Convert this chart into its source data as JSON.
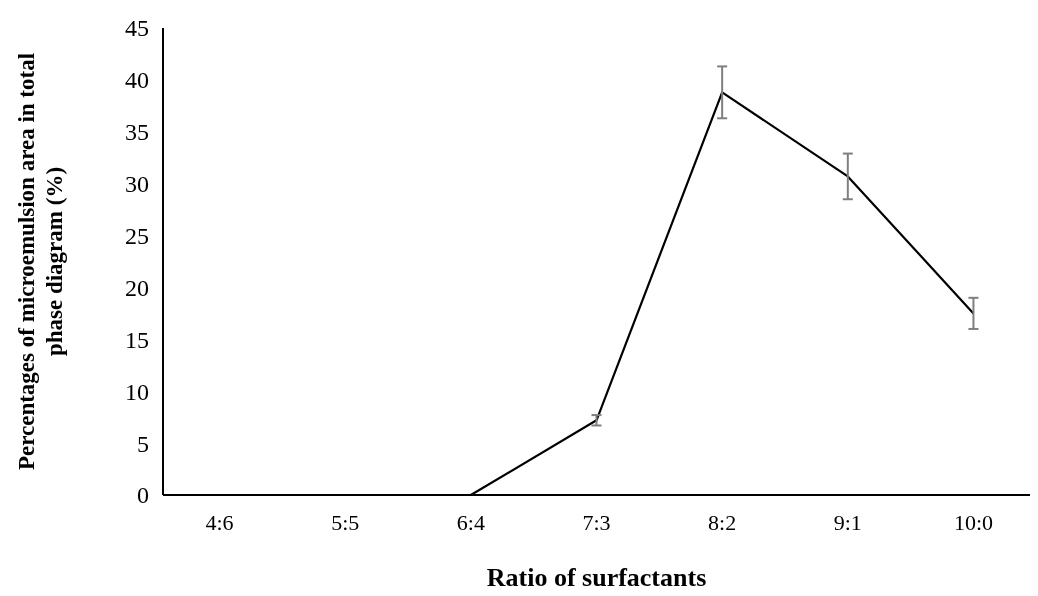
{
  "chart_data": {
    "type": "line",
    "xlabel": "Ratio of surfactants",
    "ylabel": "Percentages of microemulsion area in total phase diagram  (%)",
    "categories": [
      "4:6",
      "5:5",
      "6:4",
      "7:3",
      "8:2",
      "9:1",
      "10:0"
    ],
    "series": [
      {
        "color": "#000000",
        "values": [
          0,
          0,
          0,
          7.2,
          38.8,
          30.7,
          17.5
        ],
        "errors": [
          null,
          null,
          null,
          0.5,
          2.5,
          2.2,
          1.5
        ]
      }
    ],
    "ylim": [
      0,
      45
    ],
    "yticks": [
      0,
      5,
      10,
      15,
      20,
      25,
      30,
      35,
      40,
      45
    ],
    "grid": false,
    "marker": "none",
    "line_style": "solid"
  }
}
